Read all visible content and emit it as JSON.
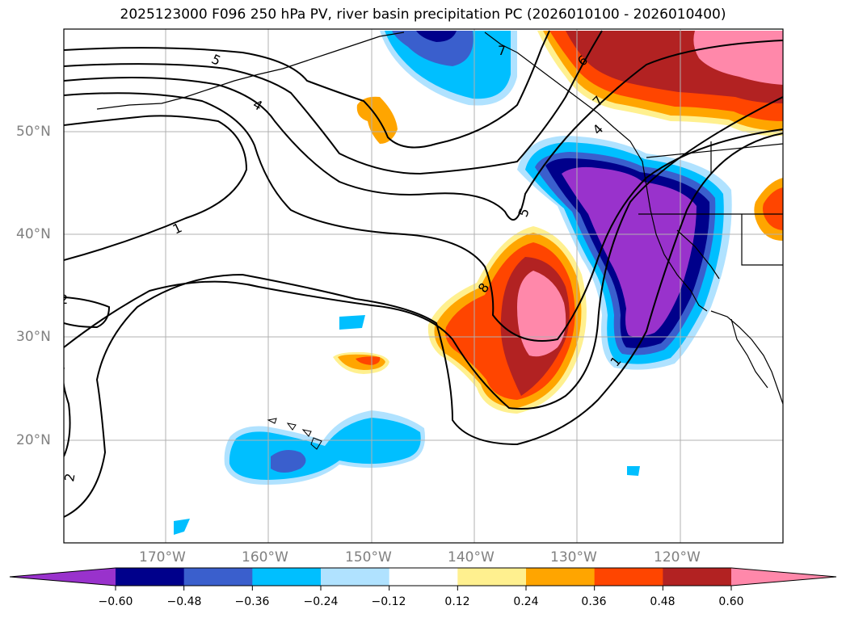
{
  "title": "2025123000 F096 250 hPa PV, river basin precipitation PC (2026010100 - 2026010400)",
  "map": {
    "lat_labels": [
      "50°N",
      "40°N",
      "30°N",
      "20°N"
    ],
    "lon_labels": [
      "170°W",
      "160°W",
      "150°W",
      "140°W",
      "130°W",
      "120°W"
    ],
    "contour_labels": [
      "5",
      "4",
      "1",
      "2",
      "2",
      "5",
      "8",
      "7",
      "6",
      "4",
      "7",
      "1"
    ]
  },
  "colorbar": {
    "ticks": [
      "−0.60",
      "−0.48",
      "−0.36",
      "−0.24",
      "−0.12",
      "0.12",
      "0.24",
      "0.36",
      "0.48",
      "0.60"
    ],
    "colors": [
      "#9932cc",
      "#00008b",
      "#3a5fcd",
      "#00bfff",
      "#b0e2ff",
      "#ffffff",
      "#fff08f",
      "#ffa500",
      "#ff4500",
      "#b22222",
      "#ff88aa"
    ]
  },
  "colors": {
    "frame": "#000000",
    "grid": "#b0b0b0",
    "coast": "#000000"
  }
}
